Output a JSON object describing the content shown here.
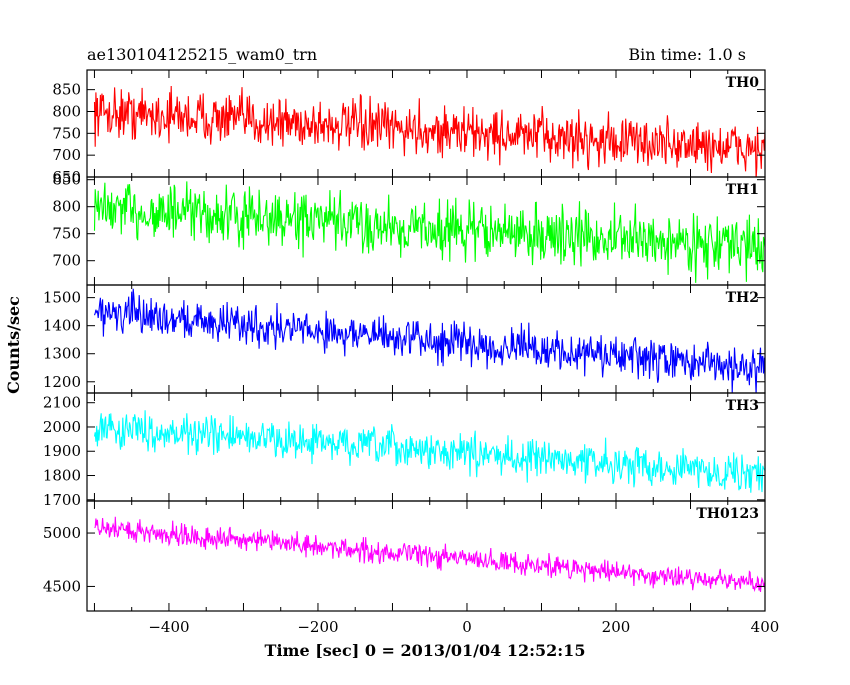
{
  "header": {
    "left_title": "ae130104125215_wam0_trn",
    "right_title": "Bin time: 1.0 s"
  },
  "axes": {
    "ylabel": "Counts/sec",
    "xlabel": "Time [sec] 0 = 2013/01/04 12:52:15",
    "x_range": [
      -510,
      400
    ],
    "x_ticks": [
      -400,
      -200,
      0,
      200,
      400
    ],
    "x_tick_labels": [
      "−400",
      "−200",
      "0",
      "200",
      "400"
    ]
  },
  "chart_data": [
    {
      "type": "line",
      "name": "TH0",
      "color": "#ff0000",
      "x_range": [
        -500,
        400
      ],
      "ylim": [
        650,
        895
      ],
      "y_ticks": [
        650,
        700,
        750,
        800,
        850
      ],
      "trend_start": 800,
      "trend_end": 713,
      "noise": 50,
      "grid": false
    },
    {
      "type": "line",
      "name": "TH1",
      "color": "#00ff00",
      "x_range": [
        -500,
        400
      ],
      "ylim": [
        655,
        855
      ],
      "y_ticks": [
        700,
        750,
        800,
        850
      ],
      "trend_start": 795,
      "trend_end": 725,
      "noise": 45,
      "grid": false
    },
    {
      "type": "line",
      "name": "TH2",
      "color": "#0000ff",
      "x_range": [
        -500,
        400
      ],
      "ylim": [
        1160,
        1545
      ],
      "y_ticks": [
        1200,
        1300,
        1400,
        1500
      ],
      "trend_start": 1450,
      "trend_end": 1245,
      "noise": 60,
      "grid": false
    },
    {
      "type": "line",
      "name": "TH3",
      "color": "#00ffff",
      "x_range": [
        -500,
        400
      ],
      "ylim": [
        1695,
        2140
      ],
      "y_ticks": [
        1700,
        1800,
        1900,
        2000,
        2100
      ],
      "trend_start": 2000,
      "trend_end": 1805,
      "noise": 65,
      "grid": false
    },
    {
      "type": "line",
      "name": "TH0123",
      "color": "#ff00ff",
      "x_range": [
        -500,
        400
      ],
      "ylim": [
        4270,
        5300
      ],
      "y_ticks": [
        4500,
        5000
      ],
      "trend_start": 5050,
      "trend_end": 4520,
      "noise": 90,
      "grid": false
    }
  ]
}
